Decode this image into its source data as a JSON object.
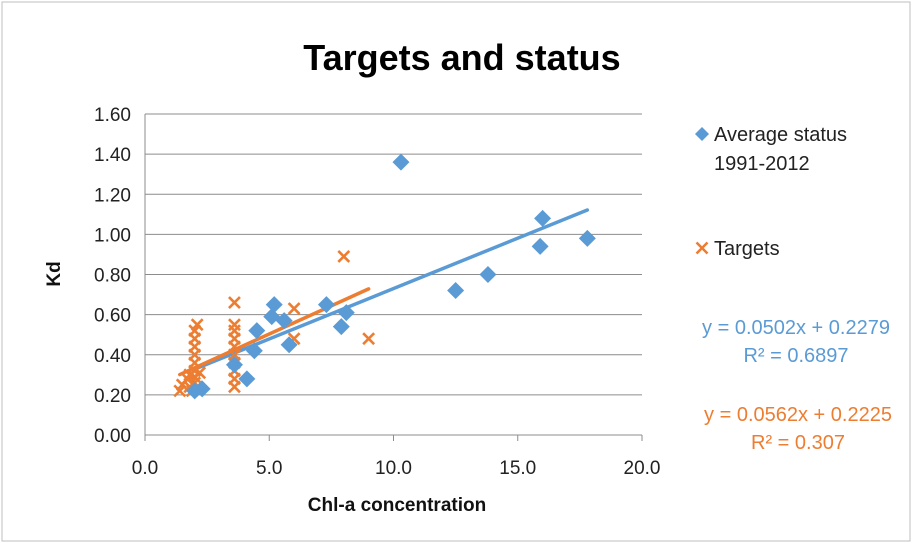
{
  "chart_data": {
    "type": "scatter",
    "title": "Targets and status",
    "xlabel": "Chl-a concentration",
    "ylabel": "Kd",
    "xlim": [
      0,
      20
    ],
    "ylim": [
      0,
      1.6
    ],
    "x_ticks": [
      "0.0",
      "5.0",
      "10.0",
      "15.0",
      "20.0"
    ],
    "y_ticks": [
      "0.00",
      "0.20",
      "0.40",
      "0.60",
      "0.80",
      "1.00",
      "1.20",
      "1.40",
      "1.60"
    ],
    "grid": "horizontal",
    "legend_position": "right",
    "series": [
      {
        "name": "Average status 1991-2012",
        "legend_line1": "Average status",
        "legend_line2": "1991-2012",
        "marker": "diamond",
        "color": "#5B9BD5",
        "points": [
          [
            2.0,
            0.22
          ],
          [
            2.3,
            0.23
          ],
          [
            3.6,
            0.35
          ],
          [
            4.1,
            0.28
          ],
          [
            4.4,
            0.42
          ],
          [
            4.5,
            0.52
          ],
          [
            5.1,
            0.59
          ],
          [
            5.2,
            0.65
          ],
          [
            5.6,
            0.57
          ],
          [
            5.8,
            0.45
          ],
          [
            7.3,
            0.65
          ],
          [
            7.9,
            0.54
          ],
          [
            8.1,
            0.61
          ],
          [
            10.3,
            1.36
          ],
          [
            12.5,
            0.72
          ],
          [
            13.8,
            0.8
          ],
          [
            15.9,
            0.94
          ],
          [
            16.0,
            1.08
          ],
          [
            17.8,
            0.98
          ]
        ],
        "trendline": {
          "slope": 0.0502,
          "intercept": 0.2279,
          "x_range": [
            2.0,
            17.8
          ],
          "equation": "y = 0.0502x + 0.2279",
          "r2": "R² = 0.6897"
        }
      },
      {
        "name": "Targets",
        "marker": "x",
        "color": "#ED7D31",
        "points": [
          [
            1.4,
            0.22
          ],
          [
            1.5,
            0.25
          ],
          [
            1.7,
            0.28
          ],
          [
            1.8,
            0.24
          ],
          [
            1.8,
            0.3
          ],
          [
            1.9,
            0.22
          ],
          [
            2.0,
            0.26
          ],
          [
            2.0,
            0.29
          ],
          [
            2.0,
            0.32
          ],
          [
            2.0,
            0.36
          ],
          [
            2.0,
            0.4
          ],
          [
            2.0,
            0.44
          ],
          [
            2.0,
            0.48
          ],
          [
            2.0,
            0.52
          ],
          [
            2.1,
            0.55
          ],
          [
            2.1,
            0.24
          ],
          [
            2.2,
            0.31
          ],
          [
            3.6,
            0.24
          ],
          [
            3.6,
            0.28
          ],
          [
            3.6,
            0.32
          ],
          [
            3.6,
            0.36
          ],
          [
            3.6,
            0.4
          ],
          [
            3.6,
            0.44
          ],
          [
            3.6,
            0.48
          ],
          [
            3.6,
            0.52
          ],
          [
            3.6,
            0.55
          ],
          [
            3.6,
            0.66
          ],
          [
            6.0,
            0.48
          ],
          [
            6.0,
            0.63
          ],
          [
            8.0,
            0.89
          ],
          [
            9.0,
            0.48
          ]
        ],
        "trendline": {
          "slope": 0.0562,
          "intercept": 0.2225,
          "x_range": [
            1.4,
            9.0
          ],
          "equation": "y = 0.0562x + 0.2225",
          "r2": "R² = 0.307"
        }
      }
    ]
  }
}
